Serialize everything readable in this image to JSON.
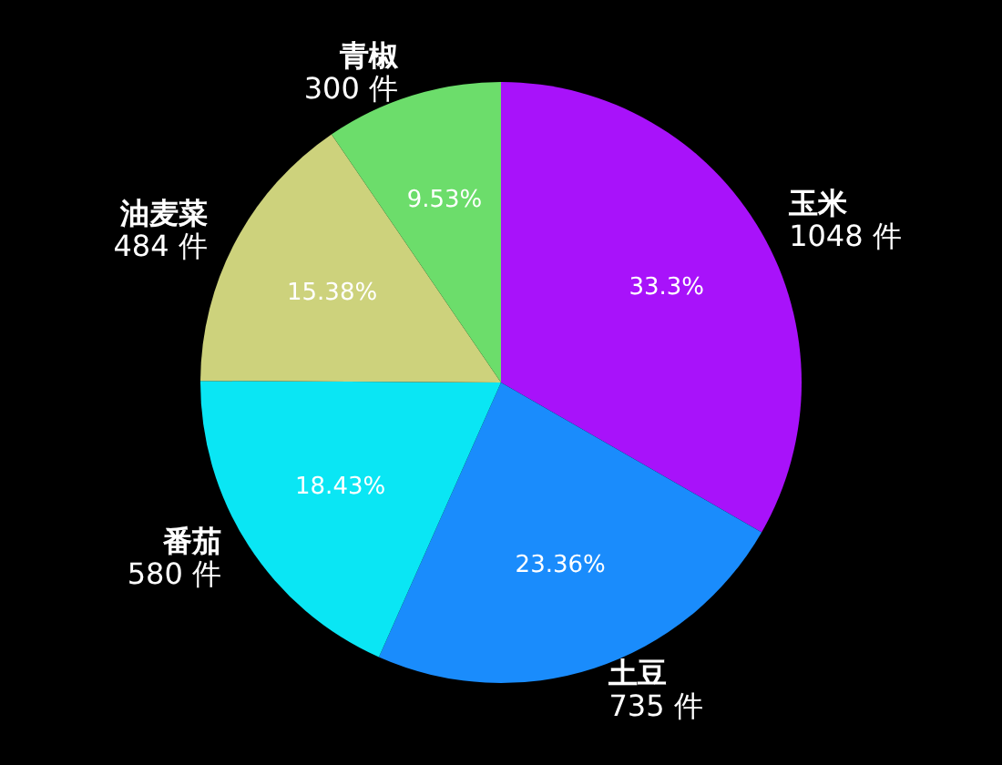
{
  "chart_data": {
    "type": "pie",
    "categories": [
      "玉米",
      "土豆",
      "番茄",
      "油麦菜",
      "青椒"
    ],
    "values": [
      1048,
      735,
      580,
      484,
      300
    ],
    "colors": [
      "#a812fa",
      "#1a8cfc",
      "#0ae6f4",
      "#cdd27c",
      "#6cdd6b"
    ],
    "value_labels": [
      "1048 件",
      "735 件",
      "580 件",
      "484 件",
      "300 件"
    ],
    "annotations": [
      "33.3%",
      "23.36%",
      "18.43%",
      "15.38%",
      "9.53%"
    ]
  }
}
